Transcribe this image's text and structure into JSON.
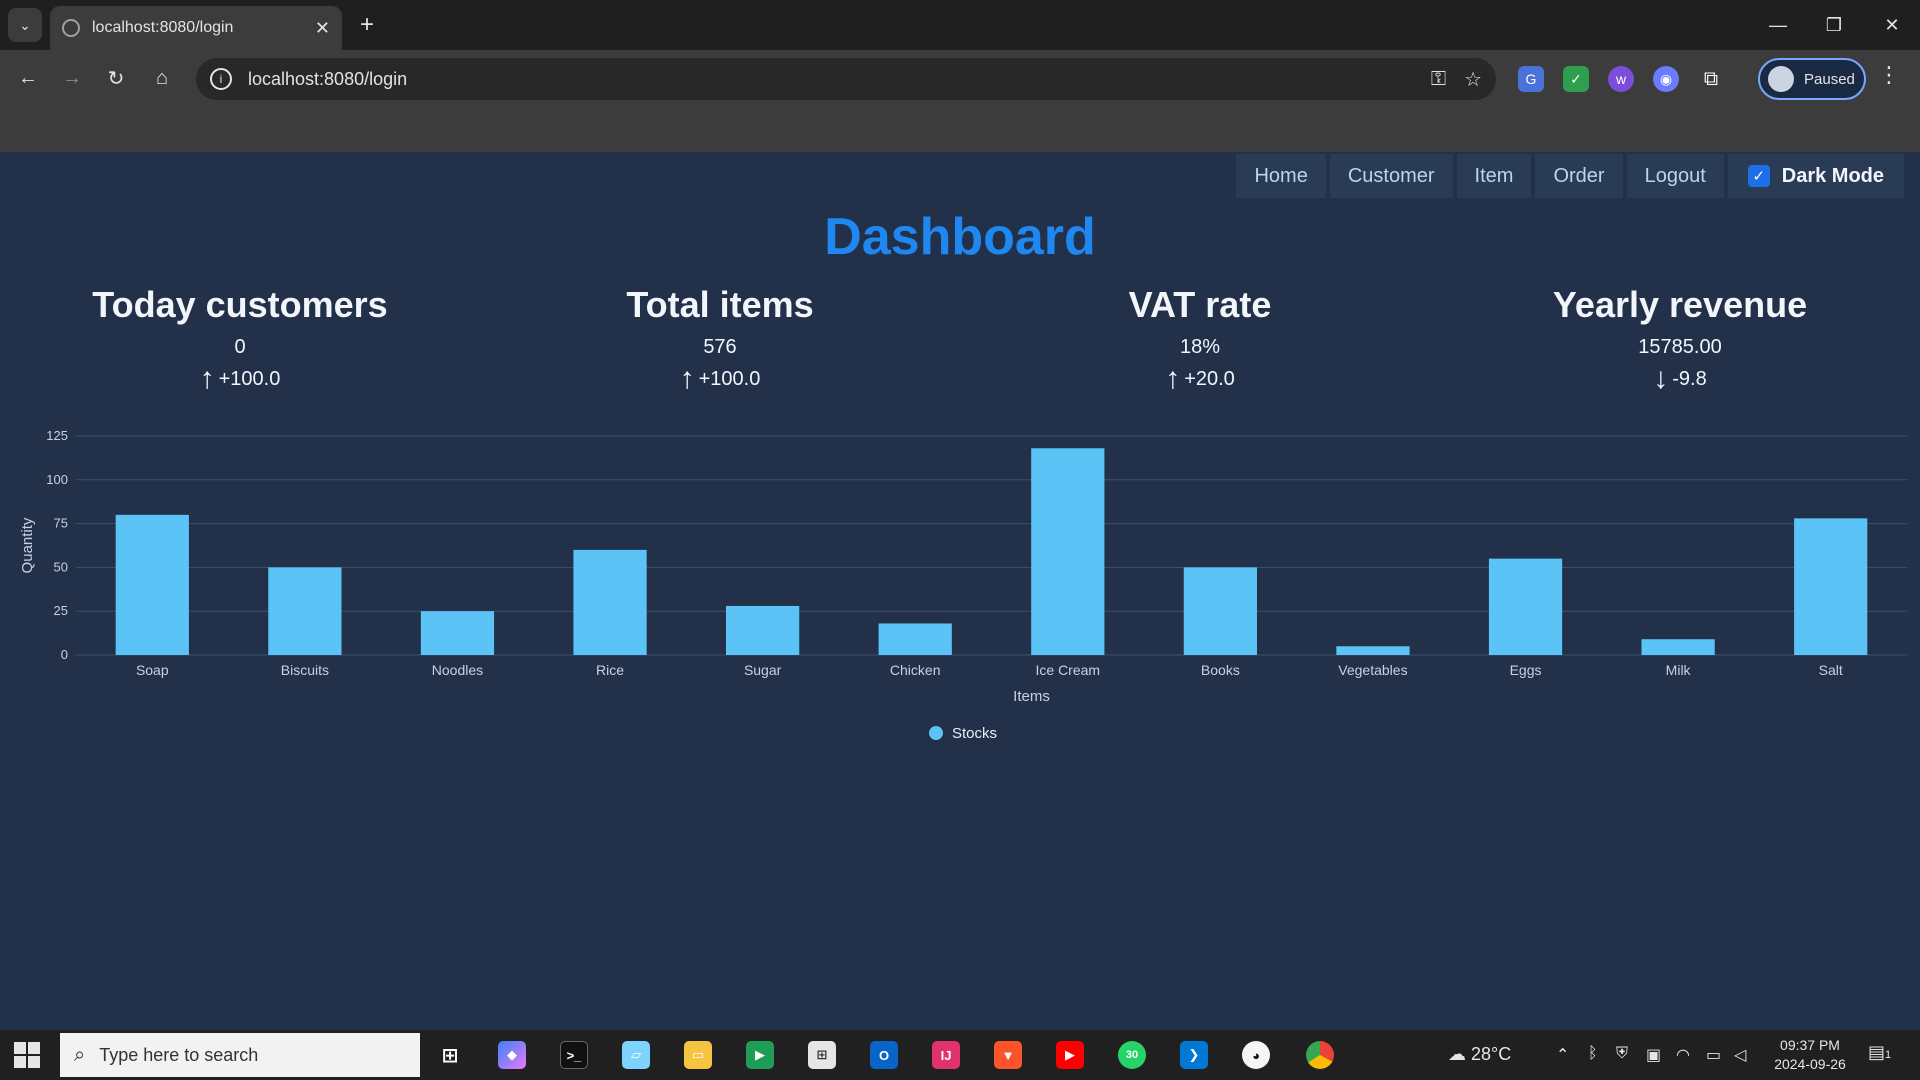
{
  "browser": {
    "tab_title": "localhost:8080/login",
    "url": "localhost:8080/login",
    "profile_label": "Paused"
  },
  "nav": {
    "items": [
      "Home",
      "Customer",
      "Item",
      "Order",
      "Logout"
    ],
    "dark_mode_label": "Dark Mode",
    "dark_mode_checked": true
  },
  "page": {
    "title": "Dashboard"
  },
  "stats": [
    {
      "title": "Today customers",
      "value": "0",
      "change": "+100.0",
      "direction": "up"
    },
    {
      "title": "Total items",
      "value": "576",
      "change": "+100.0",
      "direction": "up"
    },
    {
      "title": "VAT rate",
      "value": "18%",
      "change": "+20.0",
      "direction": "up"
    },
    {
      "title": "Yearly revenue",
      "value": "15785.00",
      "change": "-9.8",
      "direction": "down"
    }
  ],
  "chart_data": {
    "type": "bar",
    "categories": [
      "Soap",
      "Biscuits",
      "Noodles",
      "Rice",
      "Sugar",
      "Chicken",
      "Ice Cream",
      "Books",
      "Vegetables",
      "Eggs",
      "Milk",
      "Salt"
    ],
    "series": [
      {
        "name": "Stocks",
        "values": [
          80,
          50,
          25,
          60,
          28,
          18,
          118,
          50,
          5,
          55,
          9,
          78
        ],
        "color": "#5bc3f5"
      }
    ],
    "xlabel": "Items",
    "ylabel": "Quantity",
    "ylim": [
      0,
      125
    ],
    "yticks": [
      0,
      25,
      50,
      75,
      100,
      125
    ],
    "grid": true,
    "legend": "bottom-center"
  },
  "taskbar": {
    "search_placeholder": "Type here to search",
    "weather": "28°C",
    "time": "09:37 PM",
    "date": "2024-09-26",
    "whatsapp_badge": "30",
    "notification_count": "1"
  },
  "colors": {
    "page_bg": "#223149",
    "accent": "#1e88f0",
    "bar": "#5bc3f5"
  }
}
